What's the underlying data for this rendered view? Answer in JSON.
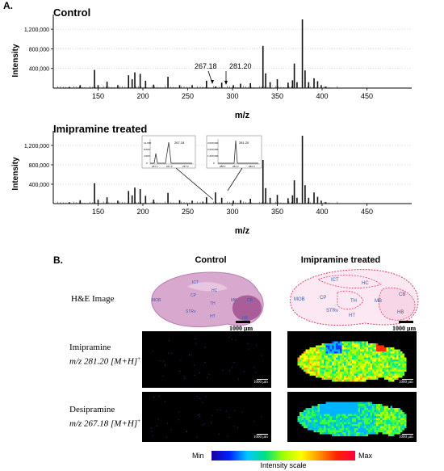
{
  "panel_a": {
    "letter": "A.",
    "control_title": "Control",
    "treated_title": "Imipramine treated",
    "y_label": "Intensity",
    "x_label": "m/z",
    "annot_1": "267.18",
    "annot_2": "281.20",
    "inset1_labels": [
      "12,000",
      "8,000",
      "4,000",
      "0",
      "267.18",
      "267.1",
      "267.2",
      "267.3"
    ],
    "inset2_labels": [
      "3,000,000",
      "2,000,000",
      "1,000,000",
      "0",
      "281.20",
      "280.1",
      "281.2",
      "282.0"
    ]
  },
  "panel_b": {
    "letter": "B.",
    "col_control": "Control",
    "col_treated": "Imipramine treated",
    "row_he": "H&E Image",
    "row_imi_name": "Imipramine",
    "row_imi_mz": "m/z 281.20 [M+H]",
    "row_desi_name": "Desipramine",
    "row_desi_mz": "m/z 267.18 [M+H]",
    "plus": "+",
    "scale_he": "1000 μm",
    "scale_ms": "1000 μm",
    "regions": [
      "ICT",
      "HC",
      "CP",
      "TH",
      "MB",
      "CB",
      "MOB",
      "STRv",
      "HT",
      "HB"
    ],
    "colorbar_min": "Min",
    "colorbar_max": "Max",
    "colorbar_label": "Intensity scale"
  },
  "chart_data": [
    {
      "type": "bar",
      "title": "Control",
      "xlabel": "m/z",
      "ylabel": "Intensity",
      "xlim": [
        100,
        500
      ],
      "ylim": [
        0,
        1400000
      ],
      "x_ticks": [
        150,
        200,
        250,
        300,
        350,
        400,
        450
      ],
      "y_ticks": [
        "400,000",
        "800,000",
        "1,200,000"
      ],
      "annotations": [
        "267.18",
        "281.20"
      ],
      "peaks": [
        [
          118,
          25000
        ],
        [
          130,
          60000
        ],
        [
          146,
          370000
        ],
        [
          150,
          60000
        ],
        [
          160,
          130000
        ],
        [
          172,
          60000
        ],
        [
          184,
          260000
        ],
        [
          188,
          180000
        ],
        [
          191,
          320000
        ],
        [
          197,
          290000
        ],
        [
          203,
          150000
        ],
        [
          212,
          70000
        ],
        [
          228,
          230000
        ],
        [
          241,
          60000
        ],
        [
          255,
          60000
        ],
        [
          267,
          12000
        ],
        [
          271,
          150000
        ],
        [
          281,
          30000
        ],
        [
          288,
          110000
        ],
        [
          301,
          60000
        ],
        [
          309,
          90000
        ],
        [
          320,
          100000
        ],
        [
          334,
          860000
        ],
        [
          337,
          300000
        ],
        [
          342,
          120000
        ],
        [
          350,
          180000
        ],
        [
          362,
          110000
        ],
        [
          367,
          160000
        ],
        [
          369,
          500000
        ],
        [
          372,
          120000
        ],
        [
          378,
          1400000
        ],
        [
          381,
          360000
        ],
        [
          385,
          120000
        ],
        [
          391,
          200000
        ],
        [
          395,
          140000
        ],
        [
          399,
          60000
        ],
        [
          404,
          30000
        ]
      ]
    },
    {
      "type": "bar",
      "title": "Imipramine treated",
      "xlabel": "m/z",
      "ylabel": "Intensity",
      "xlim": [
        100,
        500
      ],
      "ylim": [
        0,
        1400000
      ],
      "x_ticks": [
        150,
        200,
        250,
        300,
        350,
        400,
        450
      ],
      "y_ticks": [
        "400,000",
        "800,000",
        "1,200,000"
      ],
      "peaks": [
        [
          118,
          30000
        ],
        [
          130,
          70000
        ],
        [
          146,
          420000
        ],
        [
          150,
          80000
        ],
        [
          160,
          130000
        ],
        [
          172,
          60000
        ],
        [
          184,
          260000
        ],
        [
          188,
          170000
        ],
        [
          191,
          330000
        ],
        [
          197,
          300000
        ],
        [
          203,
          160000
        ],
        [
          212,
          80000
        ],
        [
          228,
          220000
        ],
        [
          241,
          70000
        ],
        [
          255,
          60000
        ],
        [
          267,
          40000
        ],
        [
          271,
          130000
        ],
        [
          281,
          230000
        ],
        [
          288,
          120000
        ],
        [
          301,
          60000
        ],
        [
          309,
          70000
        ],
        [
          320,
          100000
        ],
        [
          334,
          900000
        ],
        [
          337,
          320000
        ],
        [
          342,
          120000
        ],
        [
          350,
          180000
        ],
        [
          362,
          110000
        ],
        [
          367,
          170000
        ],
        [
          369,
          480000
        ],
        [
          372,
          120000
        ],
        [
          378,
          1400000
        ],
        [
          381,
          380000
        ],
        [
          385,
          120000
        ],
        [
          391,
          230000
        ],
        [
          395,
          140000
        ],
        [
          399,
          60000
        ],
        [
          404,
          30000
        ]
      ]
    }
  ]
}
